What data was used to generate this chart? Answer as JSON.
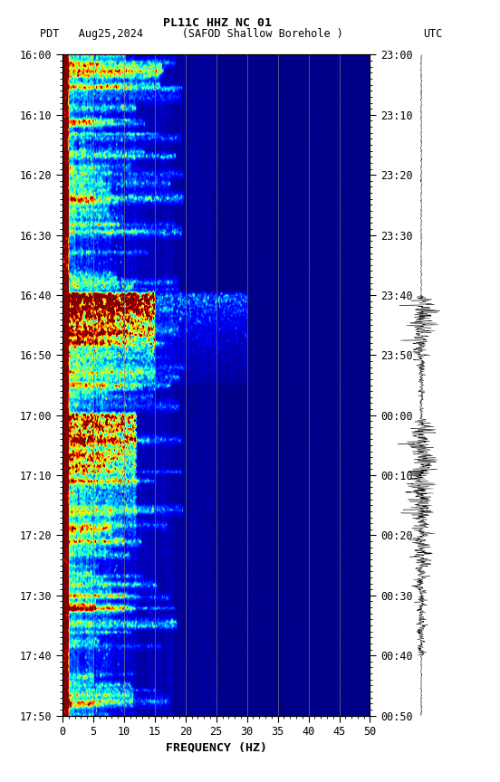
{
  "title_line1": "PL11C HHZ NC 01",
  "title_line2_left": "PDT   Aug25,2024      (SAFOD Shallow Borehole )",
  "title_line2_right": "UTC",
  "xlabel": "FREQUENCY (HZ)",
  "freq_min": 0,
  "freq_max": 50,
  "pdt_ticks": [
    "16:00",
    "16:10",
    "16:20",
    "16:30",
    "16:40",
    "16:50",
    "17:00",
    "17:10",
    "17:20",
    "17:30",
    "17:40",
    "17:50"
  ],
  "utc_ticks": [
    "23:00",
    "23:10",
    "23:20",
    "23:30",
    "23:40",
    "23:50",
    "00:00",
    "00:10",
    "00:20",
    "00:30",
    "00:40",
    "00:50"
  ],
  "freq_ticks": [
    0,
    5,
    10,
    15,
    20,
    25,
    30,
    35,
    40,
    45,
    50
  ],
  "background_color": "#ffffff",
  "colormap": "jet",
  "n_time": 660,
  "n_freq": 350,
  "seed": 42,
  "total_minutes": 110,
  "grid_freq_interval": 5,
  "eq1_minute": 40,
  "eq2_minute": 60,
  "eq1_amp": 15,
  "eq2_amp": 8
}
